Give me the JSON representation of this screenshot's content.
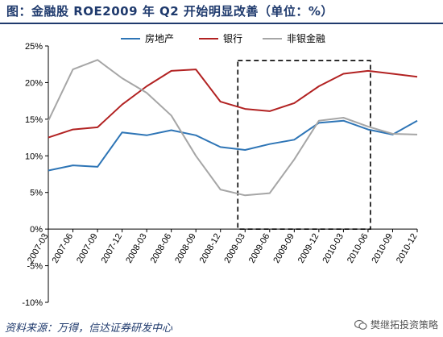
{
  "title": "图：金融股 ROE2009 年 Q2 开始明显改善（单位：%）",
  "source": "资料来源：万得，信达证券研发中心",
  "watermark": "樊继拓投资策略",
  "watermark_icon": "wechat-icon",
  "chart_data": {
    "type": "line",
    "categories": [
      "2007-03",
      "2007-06",
      "2007-09",
      "2007-12",
      "2008-03",
      "2008-06",
      "2008-09",
      "2008-12",
      "2009-03",
      "2009-06",
      "2009-09",
      "2009-12",
      "2010-03",
      "2010-06",
      "2010-09",
      "2010-12"
    ],
    "series": [
      {
        "name": "房地产",
        "color": "#2e75b6",
        "values": [
          8.0,
          8.7,
          8.5,
          13.2,
          12.8,
          13.5,
          12.8,
          11.2,
          10.8,
          11.6,
          12.2,
          14.5,
          14.8,
          13.6,
          12.9,
          14.8
        ]
      },
      {
        "name": "银行",
        "color": "#b22222",
        "values": [
          12.5,
          13.6,
          13.9,
          17.0,
          19.5,
          21.6,
          21.8,
          17.4,
          16.4,
          16.1,
          17.2,
          19.5,
          21.2,
          21.6,
          21.2,
          20.8
        ]
      },
      {
        "name": "非银金融",
        "color": "#a6a6a6",
        "values": [
          14.8,
          21.8,
          23.1,
          20.6,
          18.6,
          15.5,
          10.0,
          5.4,
          4.6,
          4.9,
          9.5,
          14.8,
          15.2,
          14.0,
          13.0,
          12.9
        ]
      }
    ],
    "ylim": [
      -10,
      25
    ],
    "yticks": [
      -10,
      -5,
      0,
      5,
      10,
      15,
      20,
      25
    ],
    "ytick_labels": [
      "-10%",
      "-5%",
      "0%",
      "5%",
      "10%",
      "15%",
      "20%",
      "25%"
    ],
    "legend_position": "top",
    "highlight_box": {
      "x_from": "2009-03",
      "x_to": "2010-06",
      "y_from": 0,
      "y_to": 23
    },
    "grid": false
  }
}
